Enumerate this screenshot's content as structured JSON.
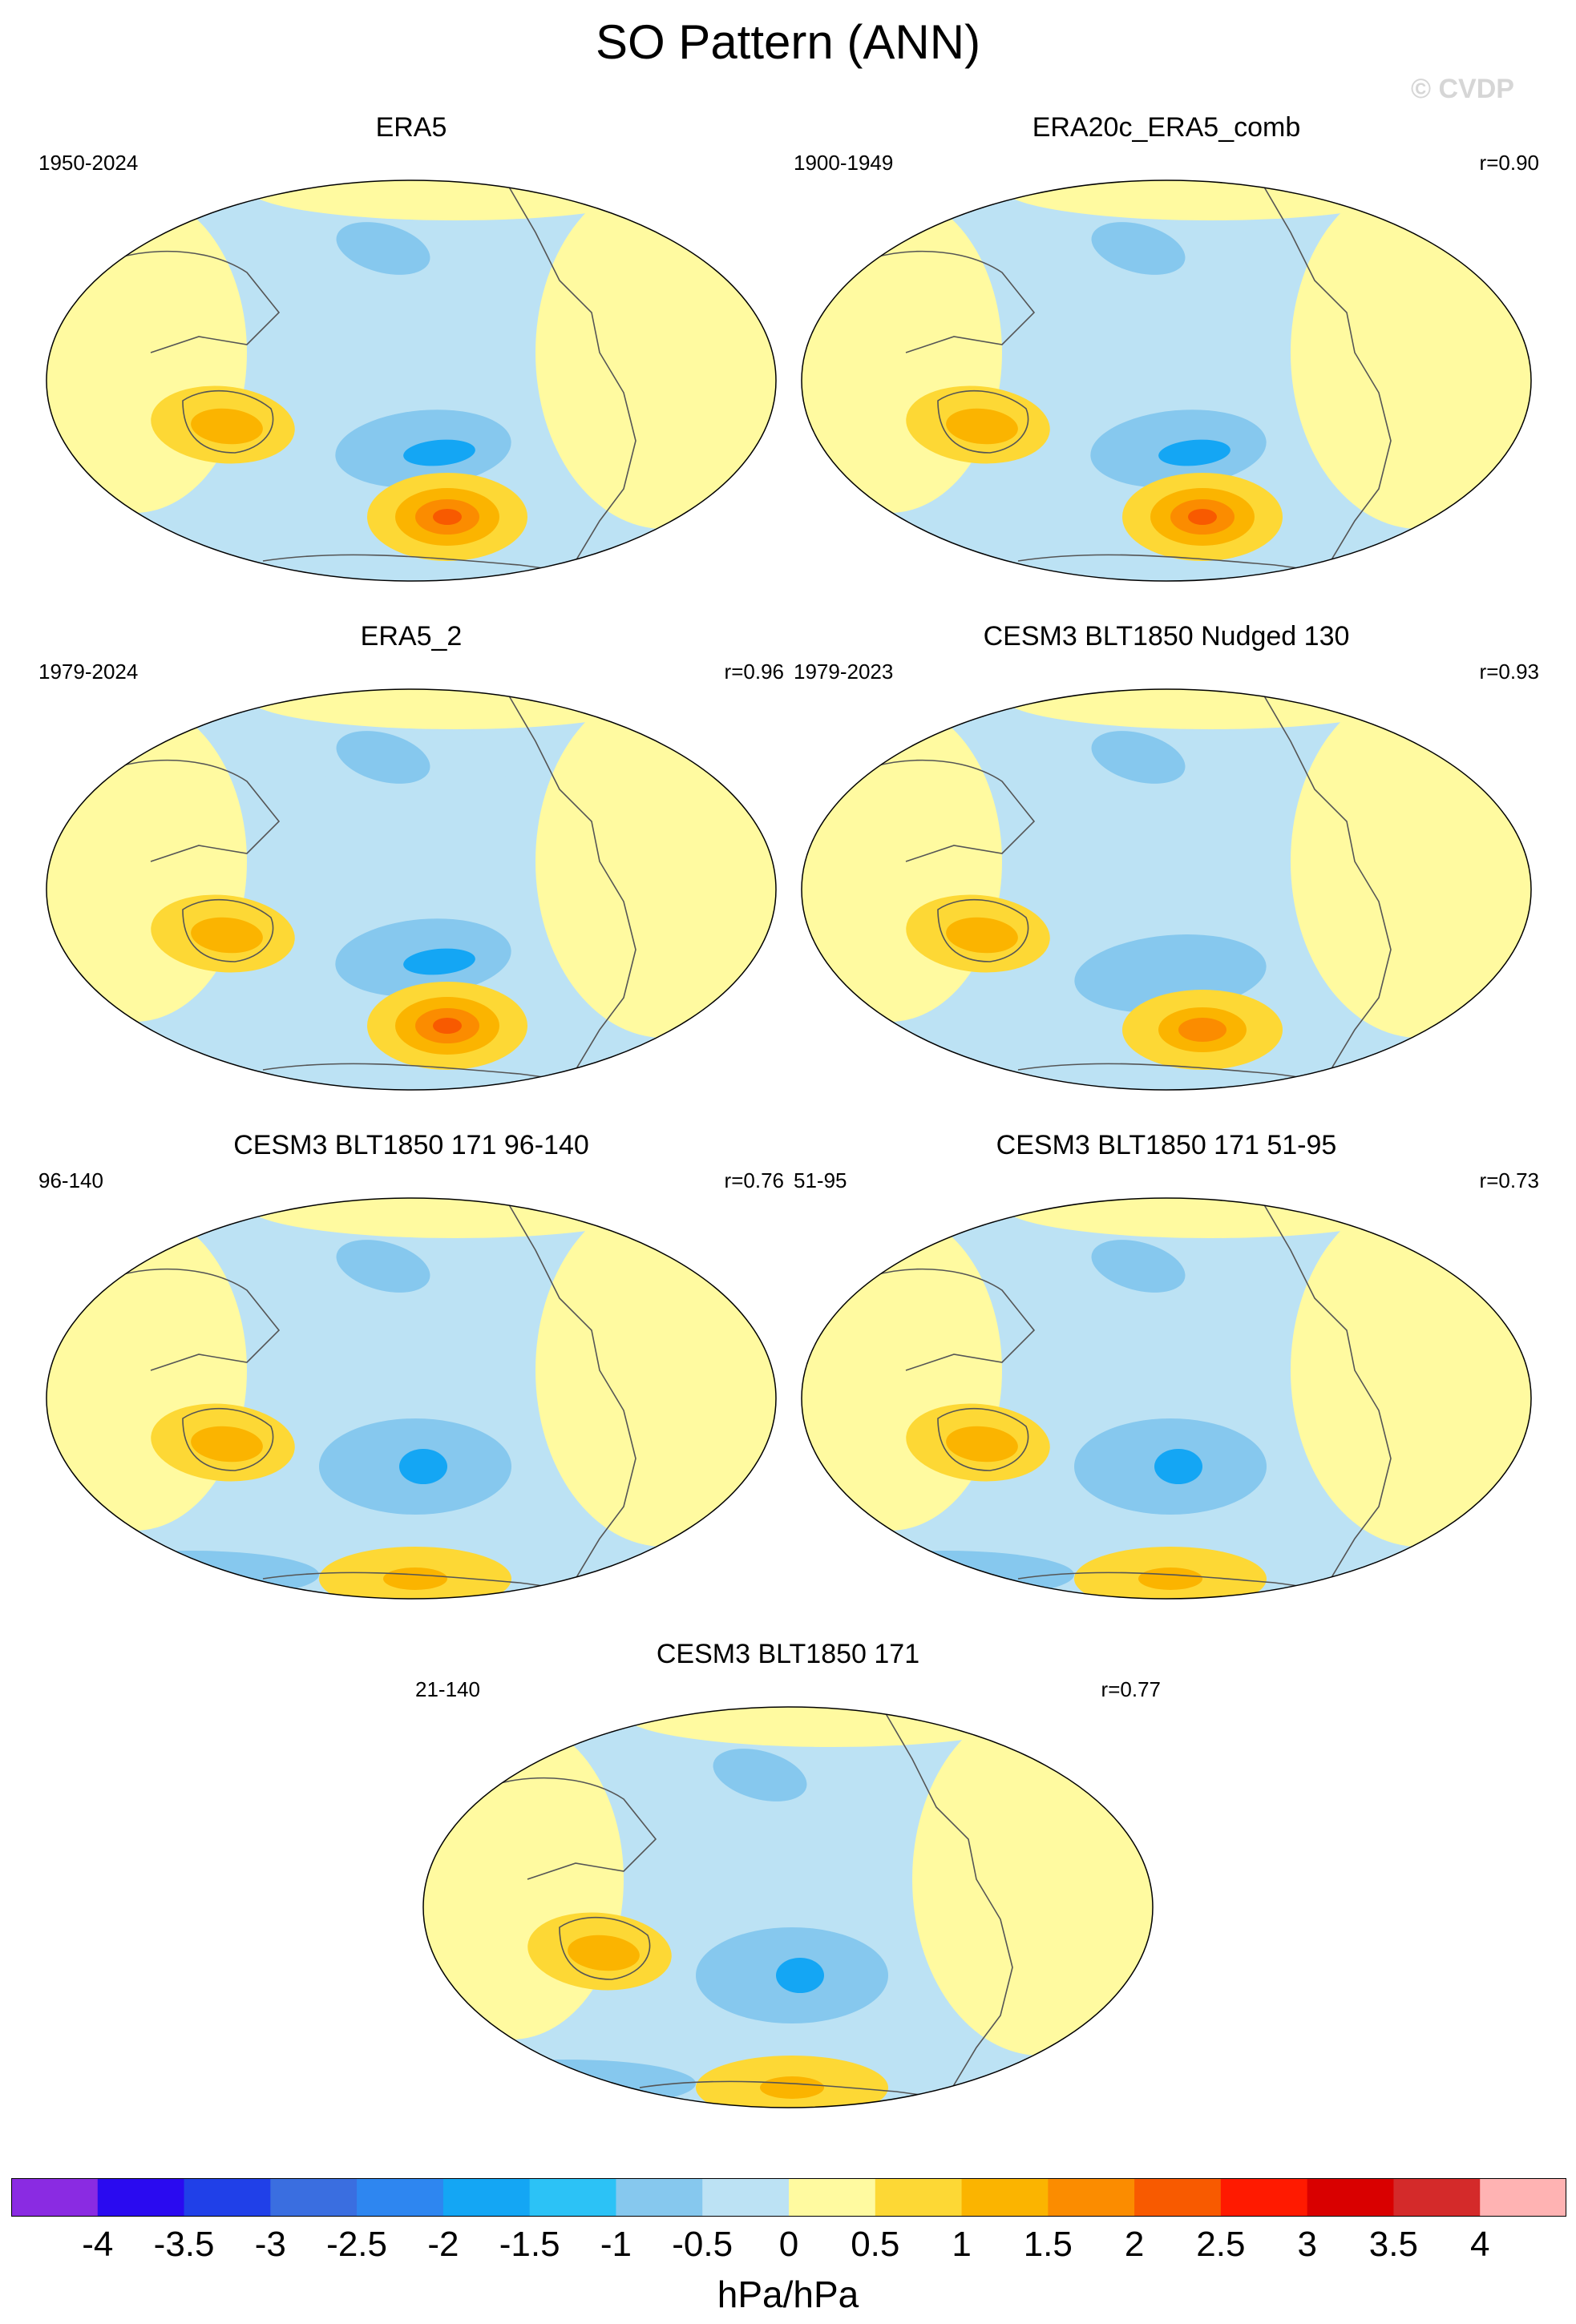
{
  "title": "SO Pattern (ANN)",
  "watermark": "© CVDP",
  "panels": [
    {
      "title": "ERA5",
      "years": "1950-2024",
      "corr": "",
      "variant": "obs"
    },
    {
      "title": "ERA20c_ERA5_comb",
      "years": "1900-1949",
      "corr": "r=0.90",
      "variant": "obs"
    },
    {
      "title": "ERA5_2",
      "years": "1979-2024",
      "corr": "r=0.96",
      "variant": "obs"
    },
    {
      "title": "CESM3 BLT1850 Nudged 130",
      "years": "1979-2023",
      "corr": "r=0.93",
      "variant": "nudged"
    },
    {
      "title": "CESM3 BLT1850 171 96-140",
      "years": "96-140",
      "corr": "r=0.76",
      "variant": "model"
    },
    {
      "title": "CESM3 BLT1850 171 51-95",
      "years": "51-95",
      "corr": "r=0.73",
      "variant": "model"
    },
    {
      "title": "CESM3 BLT1850 171",
      "years": "21-140",
      "corr": "r=0.77",
      "variant": "model"
    }
  ],
  "colorbar": {
    "levels": [
      "-4",
      "-3.5",
      "-3",
      "-2.5",
      "-2",
      "-1.5",
      "-1",
      "-0.5",
      "0",
      "0.5",
      "1",
      "1.5",
      "2",
      "2.5",
      "3",
      "3.5",
      "4"
    ],
    "colors": [
      "#8a2be2",
      "#2a0af0",
      "#2040e8",
      "#3a6ee0",
      "#2e86f0",
      "#14a6f4",
      "#2cc2f6",
      "#86c8ee",
      "#bce2f4",
      "#fffaa0",
      "#fdd835",
      "#fbb400",
      "#fb8c00",
      "#f85a00",
      "#ff1a00",
      "#d90000",
      "#d42a2a",
      "#ffb3b3"
    ],
    "units": "hPa/hPa"
  }
}
